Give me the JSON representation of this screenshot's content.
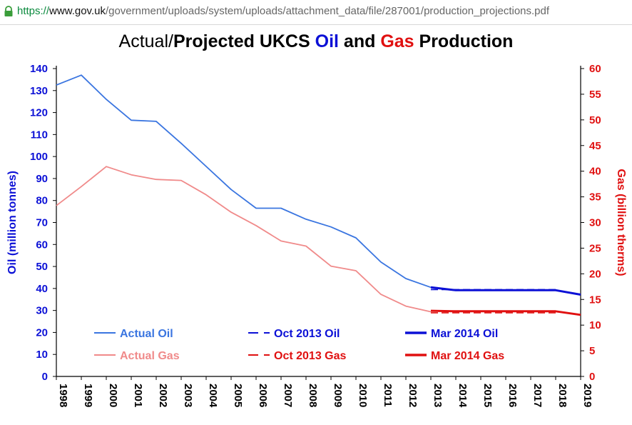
{
  "browser": {
    "url_scheme": "https://",
    "url_host": "www.gov.uk",
    "url_path": "/government/uploads/system/uploads/attachment_data/file/287001/production_projections.pdf"
  },
  "title_parts": {
    "prefix": "Actual/",
    "projected": "Projected UKCS ",
    "oil": "Oil",
    "and": " and ",
    "gas": "Gas",
    "suffix": " Production"
  },
  "chart_data": {
    "type": "line",
    "title": "Actual/Projected UKCS Oil and Gas Production",
    "categories": [
      "1998",
      "1999",
      "2000",
      "2001",
      "2002",
      "2003",
      "2004",
      "2005",
      "2006",
      "2007",
      "2008",
      "2009",
      "2010",
      "2011",
      "2012",
      "2013",
      "2014",
      "2015",
      "2016",
      "2017",
      "2018",
      "2019"
    ],
    "y_left": {
      "label": "Oil (million tonnes)",
      "range": [
        0,
        140
      ],
      "ticks": [
        0,
        10,
        20,
        30,
        40,
        50,
        60,
        70,
        80,
        90,
        100,
        110,
        120,
        130,
        140
      ],
      "color": "#0b10d6"
    },
    "y_right": {
      "label": "Gas (billion therms)",
      "range": [
        0,
        60
      ],
      "ticks": [
        0,
        5,
        10,
        15,
        20,
        25,
        30,
        35,
        40,
        45,
        50,
        55,
        60
      ],
      "color": "#e01010"
    },
    "grid": false,
    "legend_position": "bottom-inside",
    "series": [
      {
        "name": "Actual Oil",
        "axis": "left",
        "color": "#3a75e0",
        "style": "solid",
        "width": 1.8,
        "x": [
          "1998",
          "1999",
          "2000",
          "2001",
          "2002",
          "2003",
          "2004",
          "2005",
          "2006",
          "2007",
          "2008",
          "2009",
          "2010",
          "2011",
          "2012",
          "2013"
        ],
        "values": [
          132.5,
          137,
          126,
          116.5,
          116,
          106,
          95.5,
          85,
          76.5,
          76.5,
          71.5,
          68,
          63,
          52,
          44.5,
          40.5
        ]
      },
      {
        "name": "Actual Gas",
        "axis": "right",
        "color": "#f08a8a",
        "style": "solid",
        "width": 1.8,
        "x": [
          "1998",
          "1999",
          "2000",
          "2001",
          "2002",
          "2003",
          "2004",
          "2005",
          "2006",
          "2007",
          "2008",
          "2009",
          "2010",
          "2011",
          "2012",
          "2013"
        ],
        "values": [
          33.3,
          37,
          40.9,
          39.3,
          38.4,
          38.2,
          35.4,
          32,
          29.4,
          26.4,
          25.4,
          21.5,
          20.6,
          16,
          13.7,
          12.6
        ]
      },
      {
        "name": "Oct 2013 Oil",
        "axis": "left",
        "color": "#0b10d6",
        "style": "dashed",
        "width": 1.6,
        "x": [
          "2013",
          "2014",
          "2015",
          "2016",
          "2017",
          "2018"
        ],
        "values": [
          39.5,
          39.5,
          39.5,
          39.5,
          39.5,
          39.5
        ]
      },
      {
        "name": "Mar 2014 Oil",
        "axis": "left",
        "color": "#0b10d6",
        "style": "solid",
        "width": 3,
        "x": [
          "2013",
          "2014",
          "2015",
          "2016",
          "2017",
          "2018",
          "2019"
        ],
        "values": [
          40.5,
          39.2,
          39.2,
          39.2,
          39.2,
          39.2,
          37.2
        ]
      },
      {
        "name": "Oct 2013 Gas",
        "axis": "right",
        "color": "#e01010",
        "style": "dashed",
        "width": 1.6,
        "x": [
          "2013",
          "2014",
          "2015",
          "2016",
          "2017",
          "2018"
        ],
        "values": [
          12.4,
          12.4,
          12.4,
          12.4,
          12.4,
          12.4
        ]
      },
      {
        "name": "Mar 2014 Gas",
        "axis": "right",
        "color": "#e01010",
        "style": "solid",
        "width": 3,
        "x": [
          "2013",
          "2014",
          "2015",
          "2016",
          "2017",
          "2018",
          "2019"
        ],
        "values": [
          12.8,
          12.7,
          12.7,
          12.7,
          12.7,
          12.7,
          12.0
        ]
      }
    ],
    "legend": [
      {
        "label": "Actual Oil",
        "color": "#3a75e0",
        "style": "solid",
        "text_color": "#3a75e0"
      },
      {
        "label": "Oct 2013 Oil",
        "color": "#0b10d6",
        "style": "dashed",
        "text_color": "#0b10d6"
      },
      {
        "label": "Mar 2014 Oil",
        "color": "#0b10d6",
        "style": "solid-thick",
        "text_color": "#0b10d6"
      },
      {
        "label": "Actual Gas",
        "color": "#f08a8a",
        "style": "solid",
        "text_color": "#f08a8a"
      },
      {
        "label": "Oct 2013 Gas",
        "color": "#e01010",
        "style": "dashed",
        "text_color": "#e01010"
      },
      {
        "label": "Mar 2014 Gas",
        "color": "#e01010",
        "style": "solid-thick",
        "text_color": "#e01010"
      }
    ]
  }
}
